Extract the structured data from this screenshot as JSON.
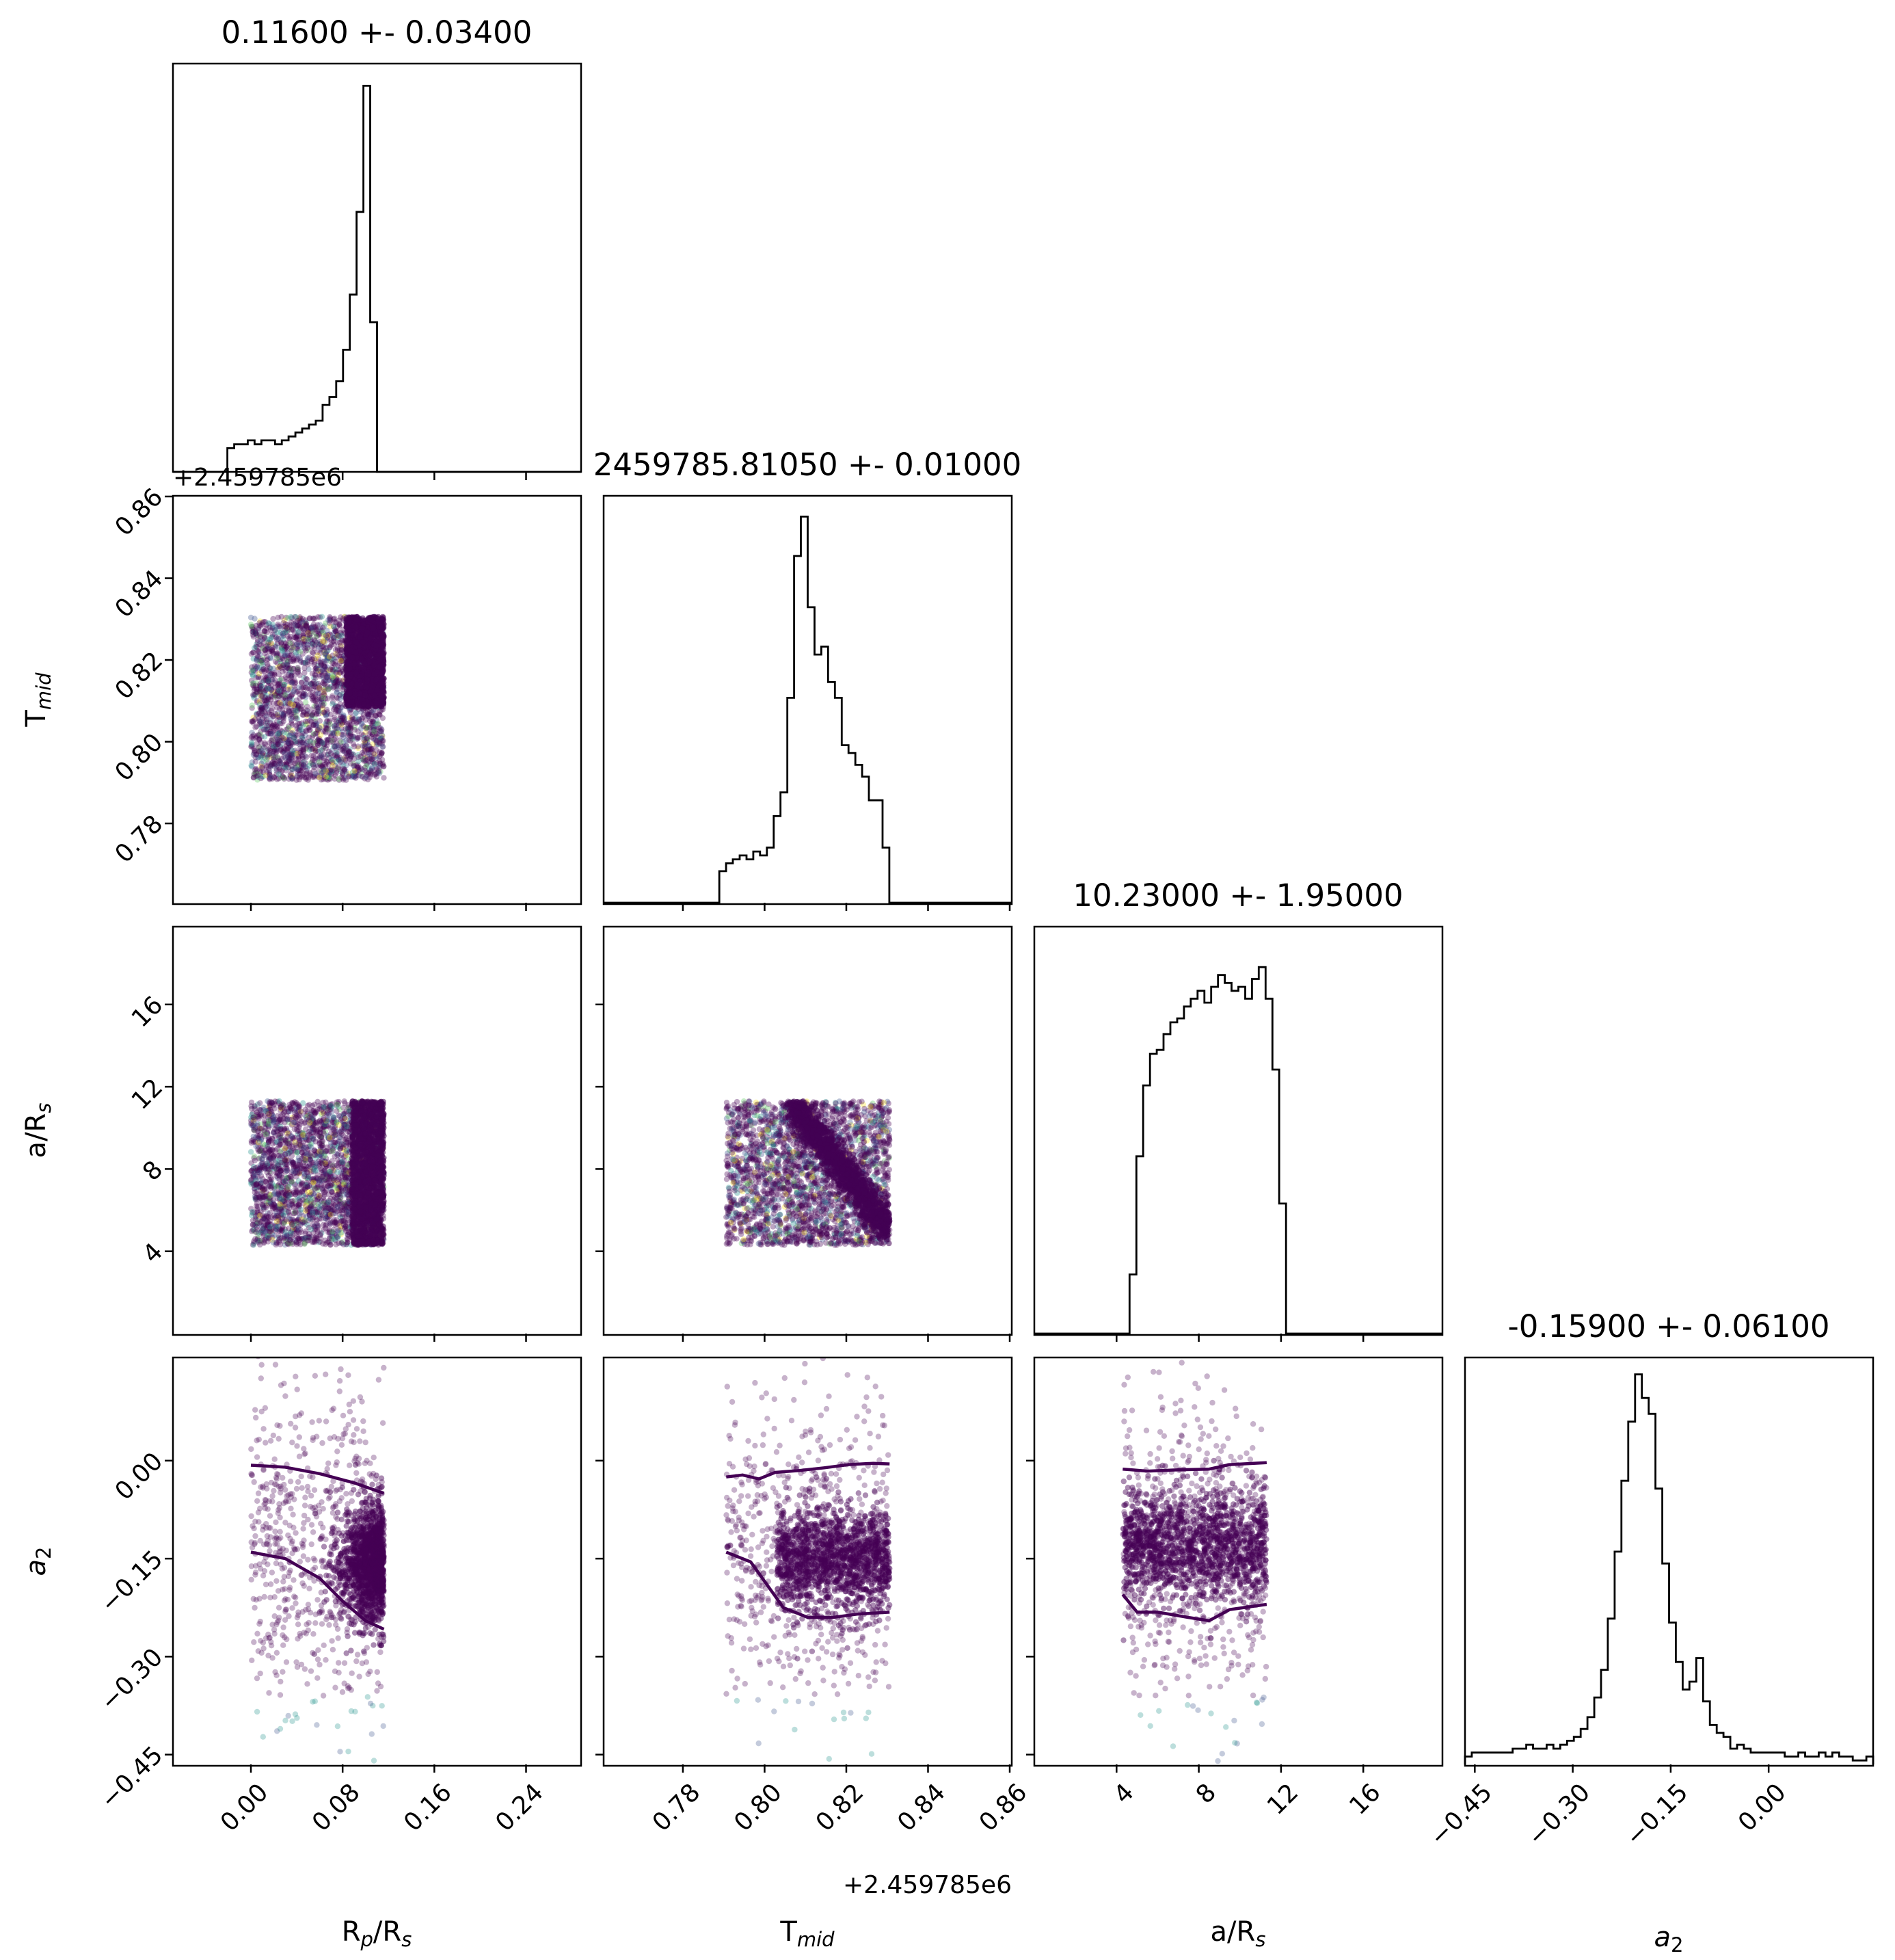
{
  "chart_data": {
    "type": "corner",
    "parameters": [
      {
        "name": "R_p/R_s",
        "title": "0.11600 +- 0.03400",
        "label_main": "R",
        "label_sub": "p",
        "label_tail": "/R",
        "label_sub2": "s",
        "range": [
          -0.068,
          0.288
        ],
        "ticks": [
          0.0,
          0.08,
          0.16,
          0.24
        ],
        "tick_labels": [
          "0.00",
          "0.08",
          "0.16",
          "0.24"
        ]
      },
      {
        "name": "T_mid",
        "title": "2459785.81050 +- 0.01000",
        "label_main": "T",
        "label_sub": "mid",
        "label_tail": "",
        "label_sub2": "",
        "offset_text": "+2.459785e6",
        "range": [
          0.7606,
          0.8605
        ],
        "ticks": [
          0.78,
          0.8,
          0.82,
          0.84,
          0.86
        ],
        "tick_labels": [
          "0.78",
          "0.80",
          "0.82",
          "0.84",
          "0.86"
        ]
      },
      {
        "name": "a/R_s",
        "title": "10.23000 +- 1.95000",
        "label_main": "a/R",
        "label_sub": "s",
        "label_tail": "",
        "label_sub2": "",
        "range": [
          0.0,
          19.85
        ],
        "ticks": [
          4,
          8,
          12,
          16
        ],
        "tick_labels": [
          "4",
          "8",
          "12",
          "16"
        ]
      },
      {
        "name": "a_2",
        "title": "-0.15900 +- 0.06100",
        "label_main": "a",
        "label_sub": "2",
        "label_tail": "",
        "label_sub2": "",
        "label_italic": true,
        "range": [
          -0.465,
          0.16
        ],
        "ticks": [
          -0.45,
          -0.3,
          -0.15,
          0.0
        ],
        "tick_labels": [
          "−0.45",
          "−0.30",
          "−0.15",
          "0.00"
        ]
      }
    ],
    "histograms": [
      {
        "bin_edges": [
          -0.068,
          0.288
        ],
        "n_bins": 60,
        "heights": [
          0,
          0,
          0,
          0,
          0,
          0,
          0,
          0,
          0.06,
          0.07,
          0.07,
          0.08,
          0.07,
          0.08,
          0.08,
          0.07,
          0.08,
          0.09,
          0.1,
          0.11,
          0.12,
          0.13,
          0.17,
          0.19,
          0.23,
          0.31,
          0.45,
          0.66,
          0.98,
          0.38,
          0,
          0,
          0,
          0,
          0,
          0,
          0,
          0,
          0,
          0,
          0,
          0,
          0,
          0,
          0,
          0,
          0,
          0,
          0,
          0,
          0,
          0,
          0,
          0,
          0,
          0,
          0,
          0,
          0,
          0
        ]
      },
      {
        "bin_edges": [
          0.7606,
          0.8605
        ],
        "n_bins": 60,
        "heights": [
          0,
          0,
          0,
          0,
          0,
          0,
          0,
          0,
          0,
          0,
          0,
          0,
          0,
          0,
          0,
          0,
          0,
          0.08,
          0.1,
          0.11,
          0.12,
          0.11,
          0.13,
          0.12,
          0.14,
          0.22,
          0.28,
          0.52,
          0.88,
          0.98,
          0.75,
          0.63,
          0.65,
          0.56,
          0.52,
          0.4,
          0.38,
          0.35,
          0.32,
          0.26,
          0.26,
          0.14,
          0,
          0,
          0,
          0,
          0,
          0,
          0,
          0,
          0,
          0,
          0,
          0,
          0,
          0,
          0,
          0,
          0,
          0
        ]
      },
      {
        "bin_edges": [
          0.0,
          19.85
        ],
        "n_bins": 60,
        "heights": [
          0,
          0,
          0,
          0,
          0,
          0,
          0,
          0,
          0,
          0,
          0,
          0,
          0,
          0,
          0.15,
          0.45,
          0.63,
          0.71,
          0.72,
          0.76,
          0.79,
          0.8,
          0.83,
          0.85,
          0.87,
          0.84,
          0.88,
          0.91,
          0.89,
          0.87,
          0.88,
          0.85,
          0.9,
          0.93,
          0.85,
          0.67,
          0.33,
          0,
          0,
          0,
          0,
          0,
          0,
          0,
          0,
          0,
          0,
          0,
          0,
          0,
          0,
          0,
          0,
          0,
          0,
          0,
          0,
          0,
          0,
          0
        ]
      },
      {
        "bin_edges": [
          -0.465,
          0.16
        ],
        "n_bins": 60,
        "heights": [
          0.02,
          0.03,
          0.03,
          0.03,
          0.03,
          0.03,
          0.03,
          0.04,
          0.04,
          0.05,
          0.04,
          0.04,
          0.05,
          0.04,
          0.05,
          0.06,
          0.07,
          0.09,
          0.12,
          0.17,
          0.24,
          0.37,
          0.54,
          0.72,
          0.87,
          0.99,
          0.93,
          0.89,
          0.7,
          0.51,
          0.36,
          0.26,
          0.19,
          0.21,
          0.27,
          0.16,
          0.1,
          0.08,
          0.07,
          0.04,
          0.05,
          0.04,
          0.03,
          0.03,
          0.03,
          0.03,
          0.03,
          0.02,
          0.02,
          0.03,
          0.02,
          0.02,
          0.03,
          0.02,
          0.03,
          0.02,
          0.02,
          0.01,
          0.01,
          0.02
        ]
      }
    ],
    "scatter_panels": [
      {
        "x_param": "R_p/R_s",
        "y_param": "T_mid",
        "x_range": [
          0.0,
          0.116
        ],
        "y_range": [
          0.7906,
          0.8306
        ],
        "dense_x_from": 0.083
      },
      {
        "x_param": "R_p/R_s",
        "y_param": "a/R_s",
        "x_range": [
          0.0,
          0.116
        ],
        "y_range": [
          4.3,
          11.3
        ],
        "dense_x_from": 0.088
      },
      {
        "x_param": "T_mid",
        "y_param": "a/R_s",
        "x_range": [
          0.7906,
          0.8306
        ],
        "y_range": [
          4.3,
          11.3
        ],
        "band": {
          "x0": 0.8064,
          "y0": 11.3,
          "x1": 0.8306,
          "y1": 5.0
        }
      },
      {
        "x_param": "R_p/R_s",
        "y_param": "a_2",
        "x_range": [
          0.0,
          0.116
        ],
        "y_range": [
          -0.465,
          0.16
        ],
        "contours": [
          {
            "x": [
              0.0,
              0.03,
              0.06,
              0.09,
              0.116
            ],
            "y": [
              -0.007,
              -0.01,
              -0.02,
              -0.034,
              -0.05
            ]
          },
          {
            "x": [
              0.0,
              0.03,
              0.06,
              0.08,
              0.1,
              0.116
            ],
            "y": [
              -0.14,
              -0.15,
              -0.18,
              -0.215,
              -0.245,
              -0.258
            ]
          }
        ]
      },
      {
        "x_param": "T_mid",
        "y_param": "a_2",
        "x_range": [
          0.7906,
          0.8306
        ],
        "y_range": [
          -0.465,
          0.16
        ],
        "contours": [
          {
            "x": [
              0.7906,
              0.7946,
              0.7986,
              0.8026,
              0.8086,
              0.8146,
              0.8206,
              0.8266,
              0.8306
            ],
            "y": [
              -0.025,
              -0.022,
              -0.028,
              -0.018,
              -0.015,
              -0.011,
              -0.006,
              -0.004,
              -0.005
            ]
          },
          {
            "x": [
              0.7906,
              0.7966,
              0.8006,
              0.8046,
              0.8106,
              0.8166,
              0.8226,
              0.8306
            ],
            "y": [
              -0.14,
              -0.155,
              -0.19,
              -0.225,
              -0.24,
              -0.24,
              -0.235,
              -0.232
            ]
          }
        ]
      },
      {
        "x_param": "a/R_s",
        "y_param": "a_2",
        "x_range": [
          4.3,
          11.3
        ],
        "y_range": [
          -0.465,
          0.16
        ],
        "contours": [
          {
            "x": [
              4.3,
              5.5,
              7.0,
              8.5,
              9.5,
              11.3
            ],
            "y": [
              -0.013,
              -0.016,
              -0.014,
              -0.013,
              -0.006,
              -0.003
            ]
          },
          {
            "x": [
              4.3,
              5.0,
              6.0,
              7.5,
              8.5,
              9.5,
              11.3
            ],
            "y": [
              -0.205,
              -0.232,
              -0.232,
              -0.24,
              -0.245,
              -0.228,
              -0.22
            ]
          }
        ]
      }
    ],
    "colors": {
      "hist_line": "#000000",
      "points": [
        "#440154",
        "#3b528b",
        "#21918c",
        "#5ec962",
        "#fde725"
      ],
      "contour": "#440154"
    },
    "grid": false,
    "legend": "none"
  }
}
